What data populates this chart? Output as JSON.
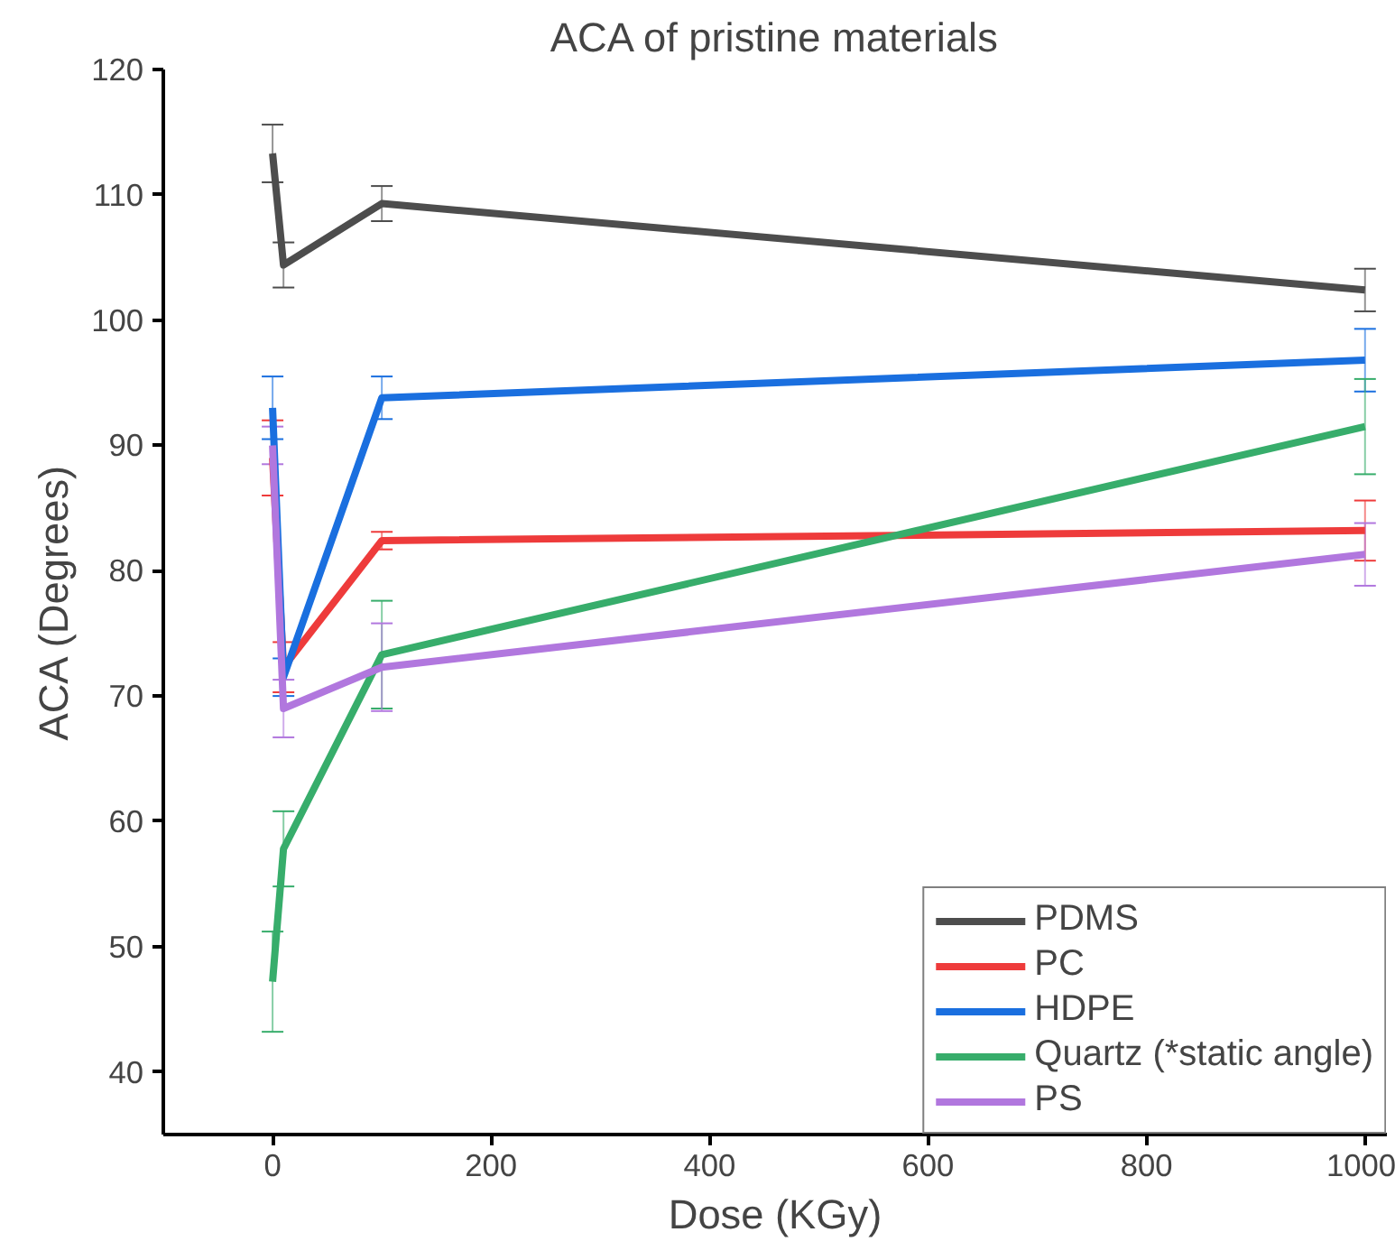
{
  "chart_data": {
    "type": "line",
    "title": "ACA of pristine materials",
    "xlabel": "Dose (KGy)",
    "ylabel": "ACA (Degrees)",
    "x": [
      0,
      10,
      100,
      1000
    ],
    "xlim": [
      -100,
      1020
    ],
    "xticks": [
      0,
      200,
      400,
      600,
      800,
      1000
    ],
    "ylim": [
      35,
      120
    ],
    "yticks": [
      40,
      50,
      60,
      70,
      80,
      90,
      100,
      110,
      120
    ],
    "grid": false,
    "legend": "bottom right",
    "marker": "none",
    "line_style": "solid",
    "series": [
      {
        "name": "PDMS",
        "color": "#4d4d4d",
        "values": [
          113.3,
          104.4,
          109.3,
          102.4
        ],
        "errors": [
          2.3,
          1.8,
          1.4,
          1.7
        ]
      },
      {
        "name": "PC",
        "color": "#ee3b3b",
        "values": [
          89,
          72.3,
          82.4,
          83.2
        ],
        "errors": [
          3,
          2,
          0.7,
          2.4
        ]
      },
      {
        "name": "HDPE",
        "color": "#1a6fdf",
        "values": [
          93,
          71.5,
          93.8,
          96.8
        ],
        "errors": [
          2.5,
          1.5,
          1.7,
          2.5
        ]
      },
      {
        "name": "Quartz (*static angle)",
        "color": "#37ad6b",
        "values": [
          47.2,
          57.8,
          73.3,
          91.5
        ],
        "errors": [
          4,
          3,
          4.3,
          3.8
        ]
      },
      {
        "name": "PS",
        "color": "#b177de",
        "values": [
          90,
          69,
          72.3,
          81.3
        ],
        "errors": [
          1.5,
          2.3,
          3.5,
          2.5
        ]
      }
    ]
  }
}
